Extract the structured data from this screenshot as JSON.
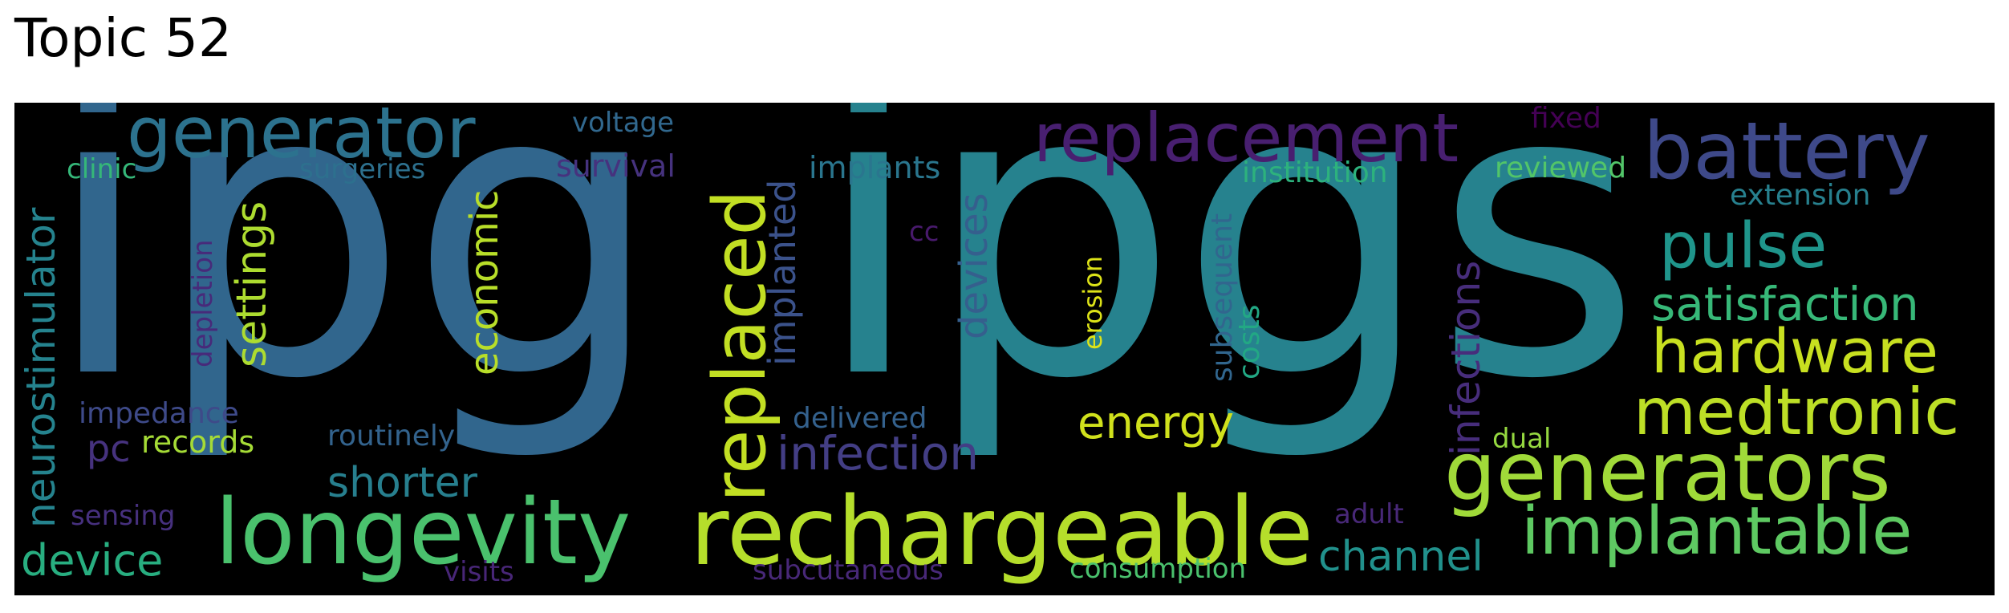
{
  "title": "Topic 52",
  "words": [
    {
      "text": "ipgs",
      "color": "#26828e"
    },
    {
      "text": "ipg",
      "color": "#31668d"
    },
    {
      "text": "rechargeable",
      "color": "#b5de2b"
    },
    {
      "text": "longevity",
      "color": "#4ac16d"
    },
    {
      "text": "generators",
      "color": "#a0da39"
    },
    {
      "text": "replaced",
      "color": "#c2df23"
    },
    {
      "text": "replacement",
      "color": "#481f70"
    },
    {
      "text": "battery",
      "color": "#3e4989"
    },
    {
      "text": "generator",
      "color": "#2c728e"
    },
    {
      "text": "implantable",
      "color": "#5ec962"
    },
    {
      "text": "medtronic",
      "color": "#bddf26"
    },
    {
      "text": "hardware",
      "color": "#c8e020"
    },
    {
      "text": "pulse",
      "color": "#1f958b"
    },
    {
      "text": "satisfaction",
      "color": "#37b878"
    },
    {
      "text": "infection",
      "color": "#433e85"
    },
    {
      "text": "energy",
      "color": "#d0e11c"
    },
    {
      "text": "shorter",
      "color": "#277f8e"
    },
    {
      "text": "device",
      "color": "#28ae80"
    },
    {
      "text": "channel",
      "color": "#21918c"
    },
    {
      "text": "neurostimulator",
      "color": "#25838e"
    },
    {
      "text": "settings",
      "color": "#addc30"
    },
    {
      "text": "economic",
      "color": "#b8de29"
    },
    {
      "text": "devices",
      "color": "#355f8d"
    },
    {
      "text": "infections",
      "color": "#472d7b"
    },
    {
      "text": "implanted",
      "color": "#3b528b"
    },
    {
      "text": "pc",
      "color": "#46327e"
    },
    {
      "text": "records",
      "color": "#a5db36"
    },
    {
      "text": "impedance",
      "color": "#3e4a89"
    },
    {
      "text": "routinely",
      "color": "#33638d"
    },
    {
      "text": "delivered",
      "color": "#34618d"
    },
    {
      "text": "sensing",
      "color": "#46307e"
    },
    {
      "text": "visits",
      "color": "#482677"
    },
    {
      "text": "subcutaneous",
      "color": "#482878"
    },
    {
      "text": "consumption",
      "color": "#4ac16d"
    },
    {
      "text": "adult",
      "color": "#482878"
    },
    {
      "text": "dual",
      "color": "#95d840"
    },
    {
      "text": "voltage",
      "color": "#31688e"
    },
    {
      "text": "surgeries",
      "color": "#2d708e"
    },
    {
      "text": "survival",
      "color": "#46327e"
    },
    {
      "text": "implants",
      "color": "#2a768e"
    },
    {
      "text": "clinic",
      "color": "#35b779"
    },
    {
      "text": "depletion",
      "color": "#472a7a"
    },
    {
      "text": "cc",
      "color": "#481a6c"
    },
    {
      "text": "erosion",
      "color": "#dde318"
    },
    {
      "text": "subsequent",
      "color": "#31668e"
    },
    {
      "text": "costs",
      "color": "#22a884"
    },
    {
      "text": "institution",
      "color": "#2db27d"
    },
    {
      "text": "fixed",
      "color": "#440154"
    },
    {
      "text": "reviewed",
      "color": "#52c569"
    },
    {
      "text": "extension",
      "color": "#27808e"
    }
  ]
}
